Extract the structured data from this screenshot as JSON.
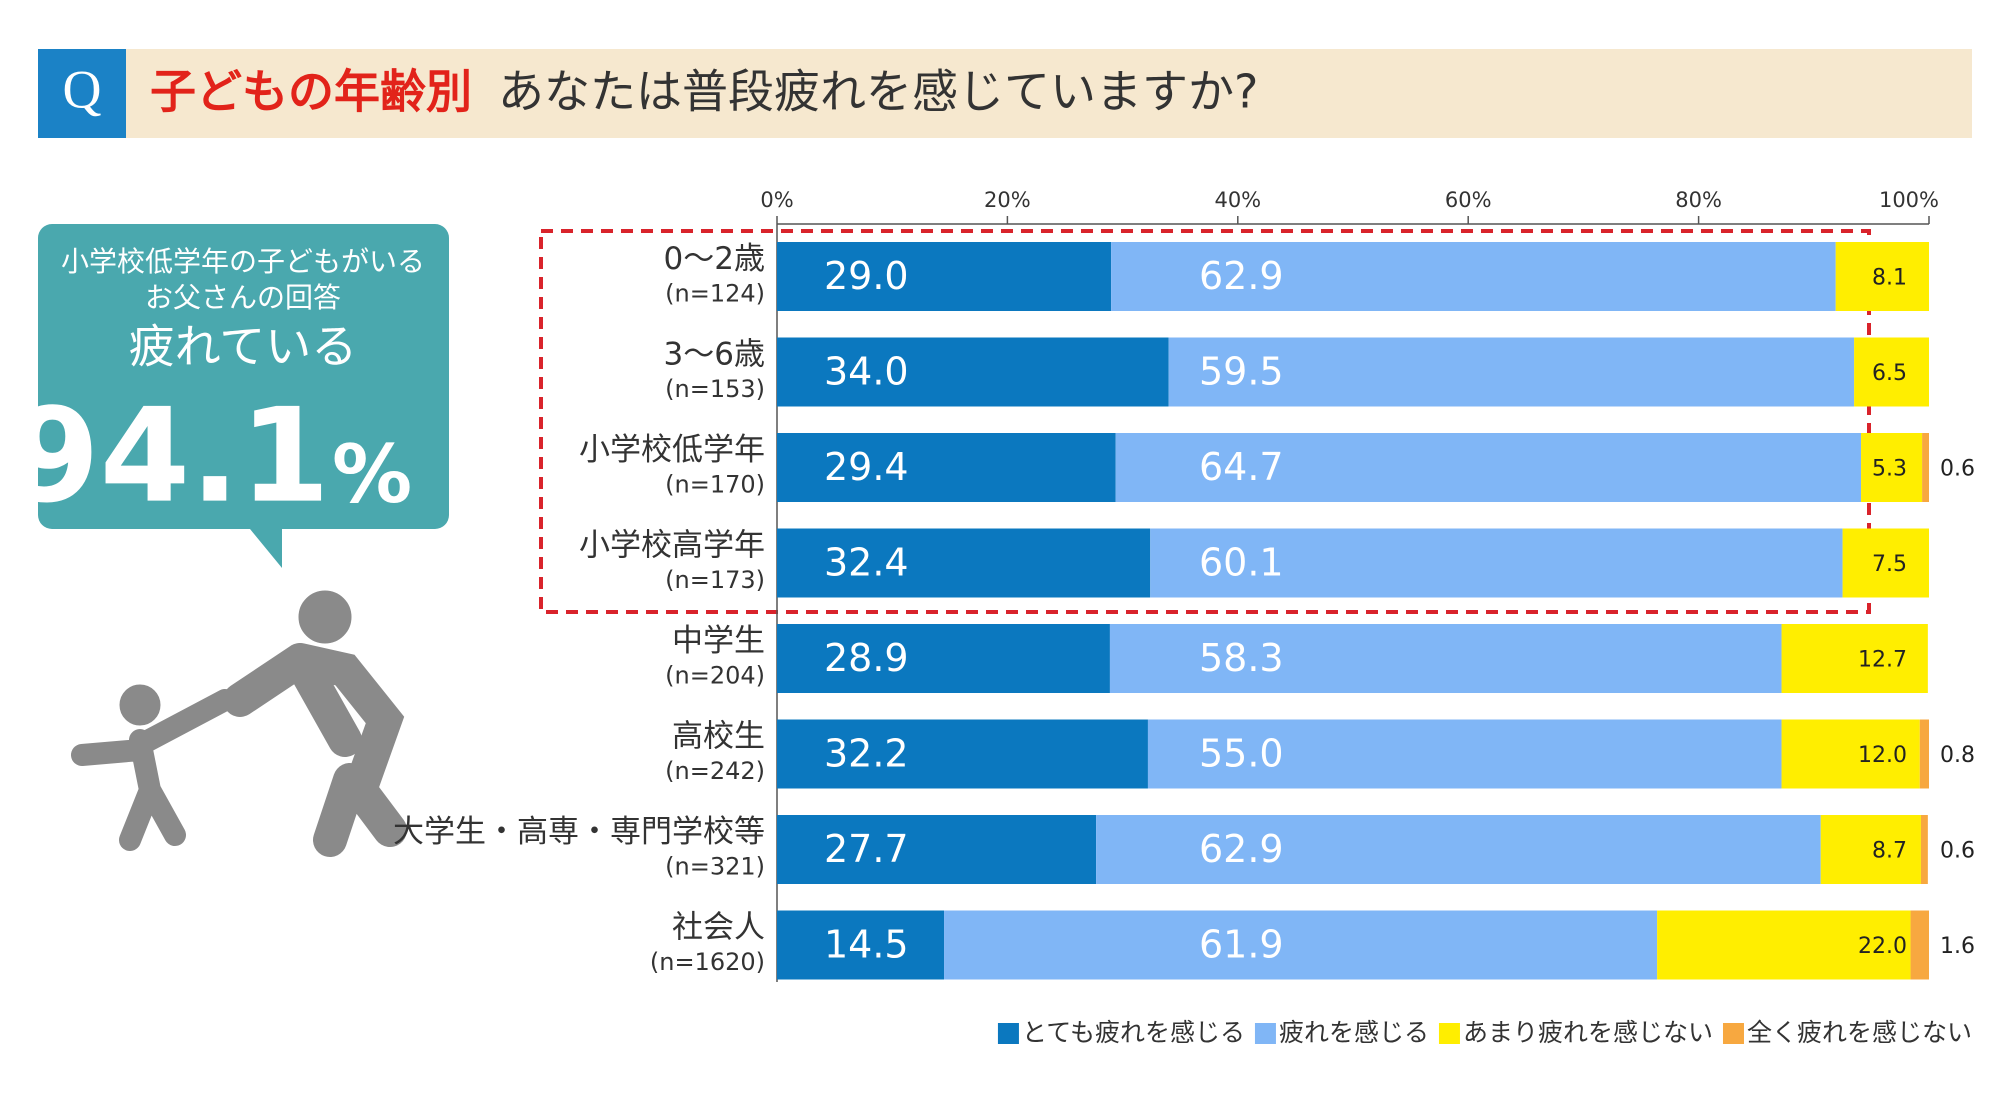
{
  "header": {
    "mark": "Q",
    "title_highlight": "子どもの年齢別",
    "title": "あなたは普段疲れを感じていますか?"
  },
  "callout": {
    "line1": "小学校低学年の子どもがいる",
    "line2": "お父さんの回答",
    "line3": "疲れている",
    "value": "94.1",
    "unit": "%"
  },
  "chart_data": {
    "type": "stacked_bar_horizontal",
    "categories": [
      "0〜2歳",
      "3〜6歳",
      "小学校低学年",
      "小学校高学年",
      "中学生",
      "高校生",
      "大学生・高専・専門学校等",
      "社会人"
    ],
    "category_notes": [
      "(n=124)",
      "(n=153)",
      "(n=170)",
      "(n=173)",
      "(n=204)",
      "(n=242)",
      "(n=321)",
      "(n=1620)"
    ],
    "series": [
      {
        "name": "とても疲れを感じる",
        "color": "#0b78bf",
        "values": [
          29.0,
          34.0,
          29.4,
          32.4,
          28.9,
          32.2,
          27.7,
          14.5
        ],
        "value_labels": [
          "29.0",
          "34.0",
          "29.4",
          "32.4",
          "28.9",
          "32.2",
          "27.7",
          "14.5"
        ]
      },
      {
        "name": "疲れを感じる",
        "color": "#80b6f6",
        "values": [
          62.9,
          59.5,
          64.7,
          60.1,
          58.3,
          55.0,
          62.9,
          61.9
        ],
        "value_labels": [
          "62.9",
          "59.5",
          "64.7",
          "60.1",
          "58.3",
          "55.0",
          "62.9",
          "61.9"
        ]
      },
      {
        "name": "あまり疲れを感じない",
        "color": "#ffee00",
        "values": [
          8.1,
          6.5,
          5.3,
          7.5,
          12.7,
          12.0,
          8.7,
          22.0
        ],
        "value_labels": [
          "8.1",
          "6.5",
          "5.3",
          "7.5",
          "12.7",
          "12.0",
          "8.7",
          "22.0"
        ]
      },
      {
        "name": "全く疲れを感じない",
        "color": "#f7a840",
        "values": [
          null,
          null,
          0.6,
          null,
          null,
          0.8,
          0.6,
          1.6
        ],
        "value_labels": [
          null,
          null,
          "0.6",
          null,
          null,
          "0.8",
          "0.6",
          "1.6"
        ]
      }
    ],
    "xlim": [
      0,
      100
    ],
    "xticks": [
      {
        "value": 0,
        "label": "0%"
      },
      {
        "value": 20,
        "label": "20%"
      },
      {
        "value": 40,
        "label": "40%"
      },
      {
        "value": 60,
        "label": "60%"
      },
      {
        "value": 80,
        "label": "80%"
      },
      {
        "value": 100,
        "label": "100%"
      }
    ],
    "legend": "bottom-right"
  }
}
